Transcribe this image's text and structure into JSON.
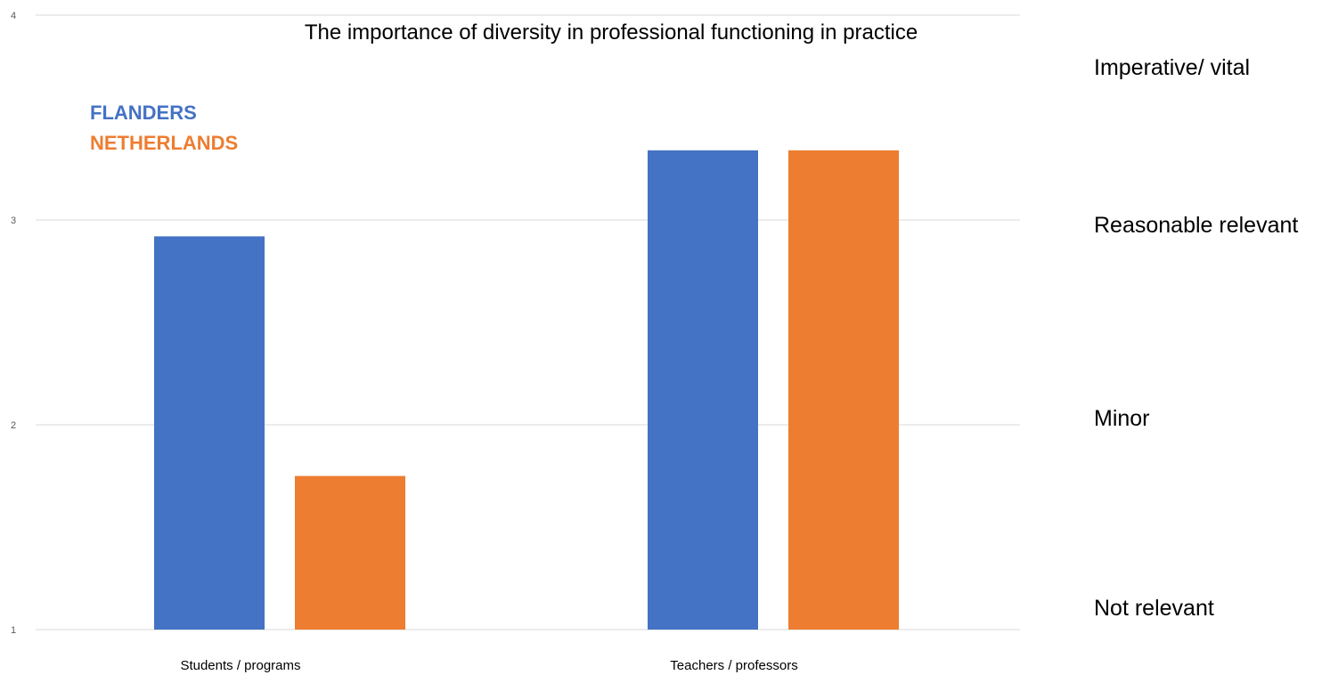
{
  "chart_data": {
    "type": "bar",
    "title": "The importance of diversity in professional functioning in practice",
    "categories": [
      "Students / programs",
      "Teachers / professors"
    ],
    "series": [
      {
        "name": "FLANDERS",
        "color": "#4472c4",
        "values": [
          2.92,
          3.34
        ]
      },
      {
        "name": "NETHERLANDS",
        "color": "#ed7d31",
        "values": [
          1.75,
          3.34
        ]
      }
    ],
    "ylim": [
      1,
      4
    ],
    "yticks": [
      "1",
      "2",
      "3",
      "4"
    ],
    "grid": true,
    "legend_position": "top-left",
    "scale_labels": [
      "Imperative/ vital",
      "Reasonable relevant",
      "Minor",
      "Not relevant"
    ]
  }
}
